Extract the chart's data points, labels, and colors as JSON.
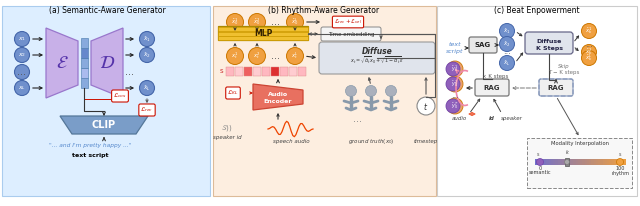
{
  "title_a": "(a) Semantic-Aware Generator",
  "title_b": "(b) Rhythm-Aware Generator",
  "title_c": "(c) Beat Enpowerment",
  "bg_a": "#ddeeff",
  "bg_b": "#fdeee0",
  "bg_c": "#ffffff",
  "encoder_color": "#c8b0e8",
  "decoder_color": "#c8b0e8",
  "clip_color": "#7a9dc8",
  "node_blue": "#7090cc",
  "node_orange": "#f0a040",
  "node_purple_orange": "#d070b0",
  "mlp_yellow": "#f0c030",
  "mlp_outline": "#c8a000",
  "audio_enc_color": "#e87060",
  "diffuse_color": "#e0e4ec",
  "text_script_color": "#5588cc",
  "red_label_color": "#cc1100",
  "arrow_color": "#333333",
  "sag_rag_color": "#e8e8e8"
}
